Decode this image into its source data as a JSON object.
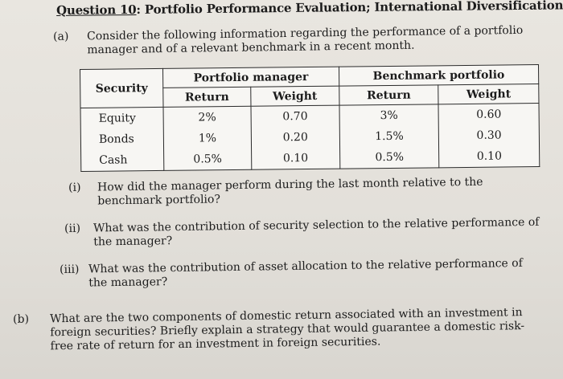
{
  "heading": {
    "number": "Question 10",
    "title": ": Portfolio Performance Evaluation; International Diversification"
  },
  "part_a": {
    "label": "(a)",
    "text": "Consider the following information regarding the performance of a portfolio manager and of a relevant benchmark in a recent month."
  },
  "table": {
    "security_header": "Security",
    "manager_header": "Portfolio manager",
    "benchmark_header": "Benchmark portfolio",
    "return_header": "Return",
    "weight_header": "Weight",
    "rows": [
      {
        "security": "Equity",
        "mgr_return": "2%",
        "mgr_weight": "0.70",
        "bm_return": "3%",
        "bm_weight": "0.60"
      },
      {
        "security": "Bonds",
        "mgr_return": "1%",
        "mgr_weight": "0.20",
        "bm_return": "1.5%",
        "bm_weight": "0.30"
      },
      {
        "security": "Cash",
        "mgr_return": "0.5%",
        "mgr_weight": "0.10",
        "bm_return": "0.5%",
        "bm_weight": "0.10"
      }
    ]
  },
  "questions": [
    {
      "label": "(i)",
      "text": "How did the manager perform during the last month relative to the benchmark portfolio?"
    },
    {
      "label": "(ii)",
      "text": "What was the contribution of security selection to the relative performance of the manager?"
    },
    {
      "label": "(iii)",
      "text": "What was the contribution of asset allocation to the relative performance of the manager?"
    }
  ],
  "part_b": {
    "label": "(b)",
    "text": "What are the two components of domestic return associated with an investment in foreign securities? Briefly explain a strategy that would guarantee a domestic risk-free rate of return for an investment in foreign securities."
  }
}
